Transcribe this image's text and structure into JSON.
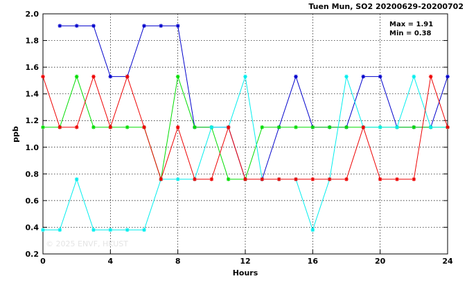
{
  "chart_data": {
    "type": "line",
    "title": "Tuen Mun, SO2 20200629-20200702",
    "xlabel": "Hours",
    "ylabel": "ppb",
    "xlim": [
      0,
      24
    ],
    "ylim": [
      0.2,
      2.0
    ],
    "x_ticks": [
      0,
      4,
      8,
      12,
      16,
      20,
      24
    ],
    "y_ticks": [
      0.2,
      0.4,
      0.6,
      0.8,
      1.0,
      1.2,
      1.4,
      1.6,
      1.8,
      2.0
    ],
    "x_tick_labels": [
      "0",
      "4",
      "8",
      "12",
      "16",
      "20",
      "24"
    ],
    "y_tick_labels": [
      "0.2",
      "0.4",
      "0.6",
      "0.8",
      "1.0",
      "1.2",
      "1.4",
      "1.6",
      "1.8",
      "2.0"
    ],
    "grid": true,
    "stats": {
      "max": "Max = 1.91",
      "min": "Min = 0.38"
    },
    "watermark": "© 2025  ENVF, HKUST",
    "x": [
      0,
      1,
      2,
      3,
      4,
      5,
      6,
      7,
      8,
      9,
      10,
      11,
      12,
      13,
      14,
      15,
      16,
      17,
      18,
      19,
      20,
      21,
      22,
      23,
      24
    ],
    "series": [
      {
        "color": "#0000cc",
        "values": [
          null,
          1.91,
          1.91,
          1.91,
          1.53,
          1.53,
          1.91,
          1.91,
          1.91,
          1.15,
          1.15,
          1.15,
          0.76,
          0.76,
          1.15,
          1.53,
          1.15,
          1.15,
          1.15,
          1.53,
          1.53,
          1.15,
          1.15,
          1.15,
          1.53
        ]
      },
      {
        "color": "#00dd00",
        "values": [
          1.15,
          1.15,
          1.53,
          1.15,
          1.15,
          1.15,
          1.15,
          0.76,
          1.53,
          1.15,
          1.15,
          0.76,
          0.76,
          1.15,
          1.15,
          1.15,
          1.15,
          1.15,
          1.15,
          1.15,
          1.15,
          1.15,
          1.15,
          1.15,
          1.15
        ]
      },
      {
        "color": "#00eeee",
        "values": [
          0.38,
          0.38,
          0.76,
          0.38,
          0.38,
          0.38,
          0.38,
          0.76,
          0.76,
          0.76,
          1.15,
          1.15,
          1.53,
          0.76,
          0.76,
          0.76,
          0.38,
          0.76,
          1.53,
          1.15,
          1.15,
          1.15,
          1.53,
          1.15,
          1.15
        ]
      },
      {
        "color": "#ee0000",
        "values": [
          1.53,
          1.15,
          1.15,
          1.53,
          1.15,
          1.53,
          1.15,
          0.76,
          1.15,
          0.76,
          0.76,
          1.15,
          0.76,
          0.76,
          0.76,
          0.76,
          0.76,
          0.76,
          0.76,
          1.15,
          0.76,
          0.76,
          0.76,
          1.53,
          1.15
        ]
      }
    ]
  }
}
